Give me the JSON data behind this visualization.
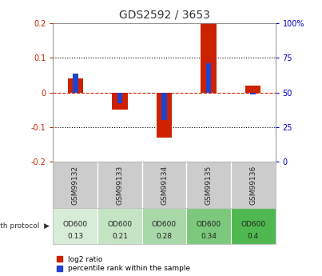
{
  "title": "GDS2592 / 3653",
  "samples": [
    "GSM99132",
    "GSM99133",
    "GSM99134",
    "GSM99135",
    "GSM99136"
  ],
  "log2_ratio": [
    0.04,
    -0.05,
    -0.13,
    0.2,
    0.02
  ],
  "percentile_rank": [
    0.055,
    -0.03,
    -0.08,
    0.085,
    -0.005
  ],
  "ylim": [
    -0.2,
    0.2
  ],
  "yticks_left": [
    -0.2,
    -0.1,
    0.0,
    0.1,
    0.2
  ],
  "ytick_labels_left": [
    "-0.2",
    "-0.1",
    "0",
    "0.1",
    "0.2"
  ],
  "yticks_right": [
    0,
    25,
    50,
    75,
    100
  ],
  "ytick_labels_right": [
    "0",
    "25",
    "50",
    "75",
    "100%"
  ],
  "growth_protocol_labels": [
    "OD600\n0.13",
    "OD600\n0.21",
    "OD600\n0.28",
    "OD600\n0.34",
    "OD600\n0.4"
  ],
  "growth_colors": [
    "#d8edd8",
    "#c4e4c4",
    "#a8d8a8",
    "#7cc87c",
    "#50b850"
  ],
  "bar_width": 0.35,
  "blue_bar_width": 0.12,
  "red_color": "#cc2200",
  "blue_color": "#2244cc",
  "dashed_zero_color": "#cc2200",
  "title_color": "#333333",
  "left_tick_color": "#cc2200",
  "right_tick_color": "#0000cc",
  "bg_color": "#ffffff",
  "plot_bg": "#ffffff",
  "sample_bg": "#cccccc"
}
